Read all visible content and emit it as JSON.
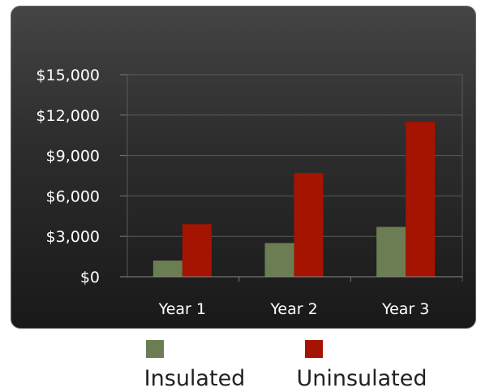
{
  "chart_data": {
    "type": "bar",
    "categories": [
      "Year 1",
      "Year 2",
      "Year 3"
    ],
    "series": [
      {
        "name": "Insulated",
        "color": "#6b7d52",
        "values": [
          1200,
          2500,
          3700
        ]
      },
      {
        "name": "Uninsulated",
        "color": "#a51400",
        "values": [
          3900,
          7700,
          11500
        ]
      }
    ],
    "y_ticks": [
      "$0",
      "$3,000",
      "$6,000",
      "$9,000",
      "$12,000",
      "$15,000"
    ],
    "ylim": [
      0,
      15000
    ],
    "title": "",
    "xlabel": "",
    "ylabel": "",
    "grid": true,
    "legend_position": "bottom"
  }
}
